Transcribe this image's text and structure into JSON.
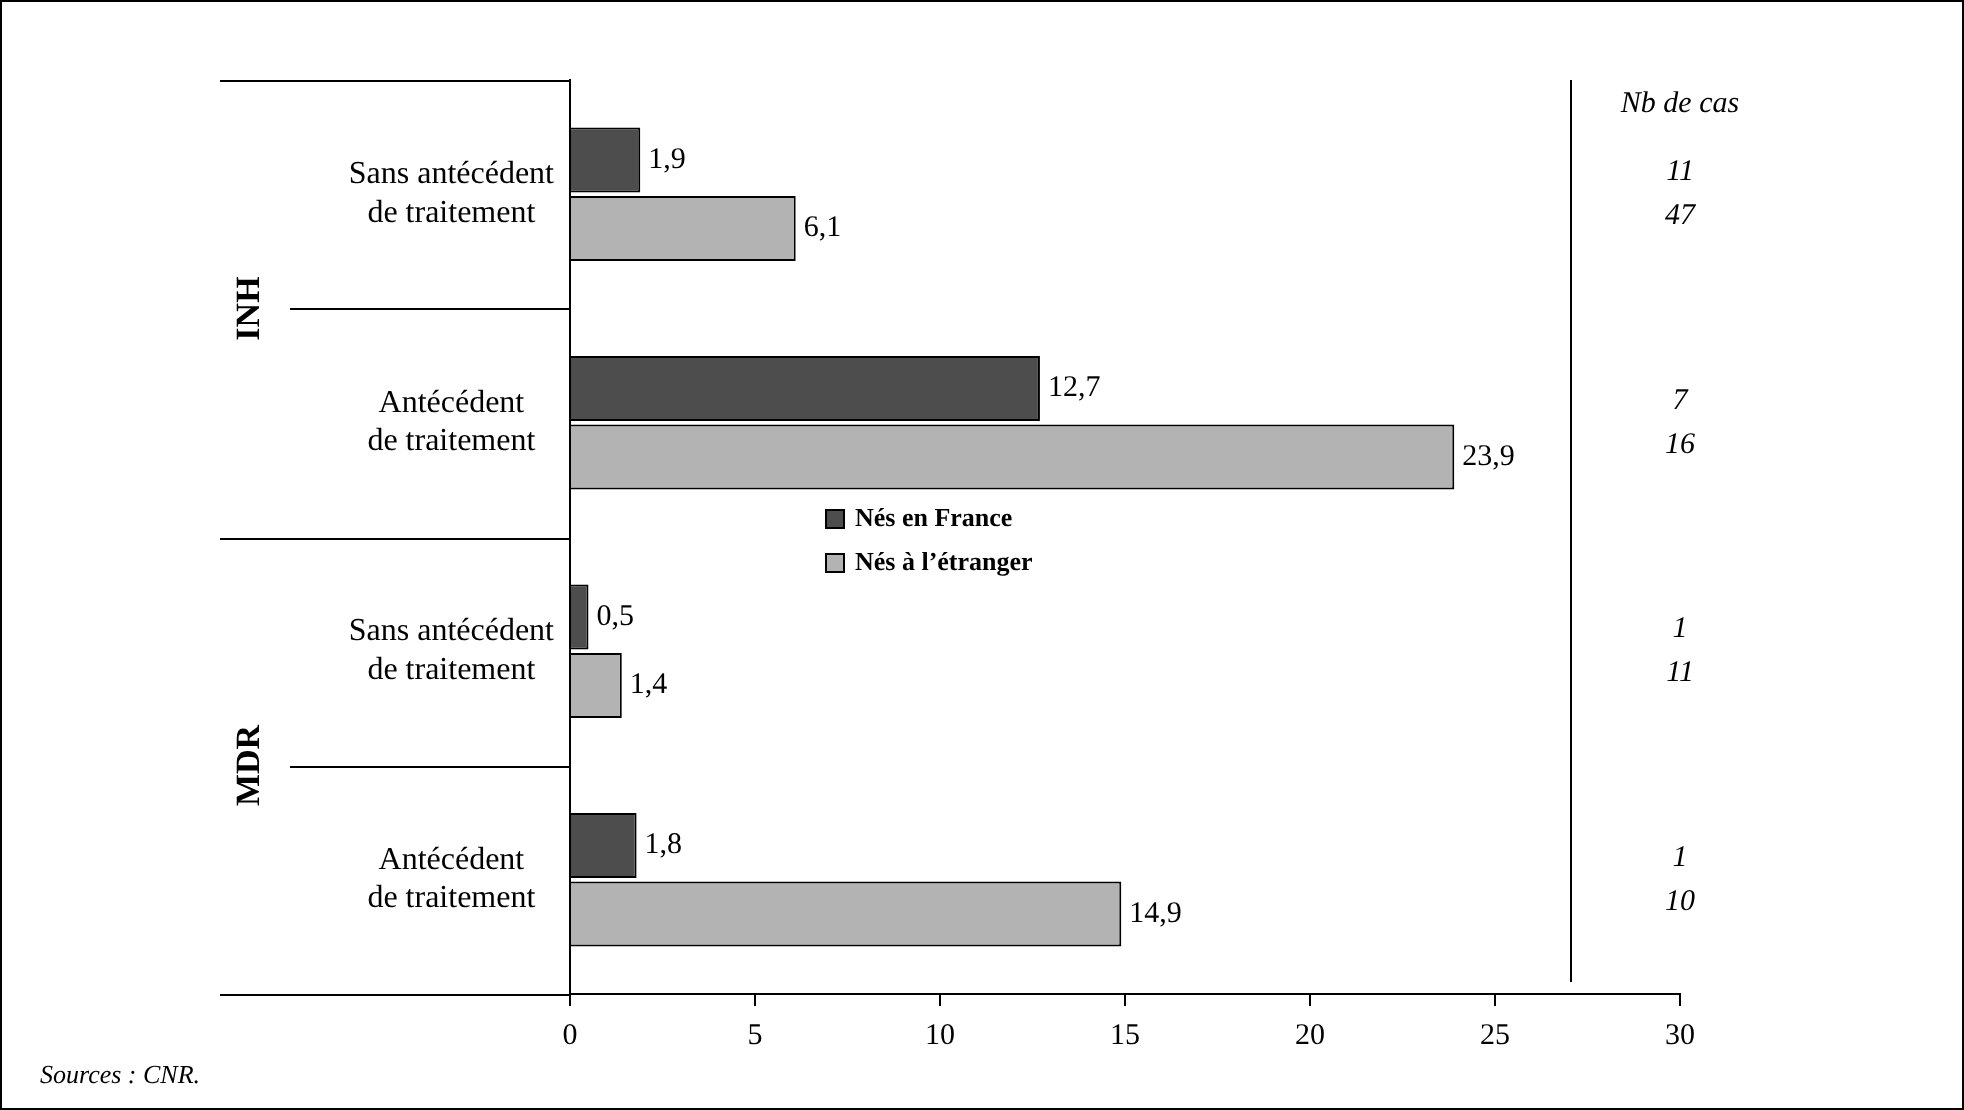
{
  "chart_data": {
    "type": "bar",
    "orientation": "horizontal",
    "categories": [
      "Sans antécédent\nde traitement",
      "Antécédent\nde traitement",
      "Sans antécédent\nde traitement",
      "Antécédent\nde traitement"
    ],
    "series": [
      {
        "name": "Nés en France",
        "color": "#4d4d4d",
        "values": [
          1.9,
          12.7,
          0.5,
          1.8
        ],
        "value_labels": [
          "1,9",
          "12,7",
          "0,5",
          "1,8"
        ]
      },
      {
        "name": "Nés à l’étranger",
        "color": "#b3b3b3",
        "values": [
          6.1,
          23.9,
          1.4,
          14.9
        ],
        "value_labels": [
          "6,1",
          "23,9",
          "1,4",
          "14,9"
        ]
      }
    ],
    "xlim": [
      0,
      30
    ],
    "xticks": [
      0,
      5,
      10,
      15,
      20,
      25,
      30
    ],
    "grid": false,
    "ref_lines": [
      {
        "axis": "x",
        "value": 27
      }
    ],
    "legend": "center",
    "annotations": [
      "Sources : CNR.",
      "INH",
      "MDR",
      "Nb de cas",
      "11",
      "47",
      "7",
      "16",
      "1",
      "11",
      "1",
      "10"
    ]
  }
}
